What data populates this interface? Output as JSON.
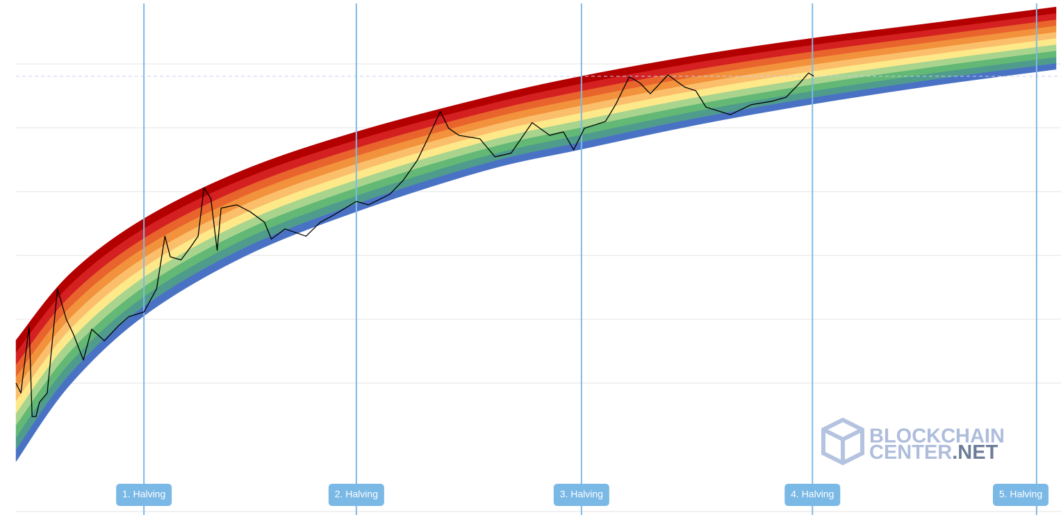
{
  "chart_data": {
    "type": "line",
    "log_scale": true,
    "xlim": [
      0,
      214
    ],
    "ylim": [
      0.01,
      1000000
    ],
    "gridlines": [
      1,
      10,
      100,
      1000,
      10000,
      100000
    ],
    "grid": true,
    "reference_line": 64000,
    "series": [
      {
        "color": "#000000",
        "x": [
          0,
          1,
          2.7,
          3.3,
          4.1,
          4.8,
          6.4,
          8.5,
          10.3,
          11.7,
          13.8,
          15.5,
          18.1,
          20.9,
          23.1,
          26.2,
          28.8,
          30.5,
          31.6,
          33.8,
          35.9,
          37.3,
          38.5,
          39.9,
          41.2,
          42.0,
          45.2,
          48.0,
          50.9,
          52.3,
          55.1,
          59.4,
          62.3,
          65.1,
          69.7,
          72.2,
          76.5,
          79.3,
          82.2,
          84.3,
          86.9,
          88.6,
          90.7,
          95.0,
          98.1,
          101.4,
          105.7,
          109.3,
          112.1,
          114.2,
          116.4,
          120.7,
          122.8,
          125.6,
          127.8,
          129.9,
          133.5,
          137.0,
          139.2,
          141.3,
          146.3,
          150.6,
          154.8,
          157.7,
          160.5,
          162.3,
          163.4
        ],
        "values": [
          1.0,
          0.7,
          7.8,
          0.3,
          0.3,
          0.5,
          0.7,
          30,
          10,
          6,
          2.3,
          7,
          4.6,
          7.8,
          11,
          13,
          30,
          200,
          95,
          85,
          140,
          200,
          1150,
          780,
          120,
          550,
          620,
          480,
          330,
          180,
          260,
          200,
          330,
          430,
          700,
          620,
          900,
          1500,
          3100,
          6700,
          18000,
          9800,
          7600,
          6700,
          3500,
          4000,
          12000,
          7600,
          8600,
          4500,
          9800,
          12500,
          23000,
          63000,
          50000,
          34000,
          67000,
          43000,
          38000,
          21000,
          16000,
          23000,
          26000,
          30000,
          50000,
          72000,
          64000
        ]
      }
    ],
    "bands": {
      "colors": [
        "#4a72c4",
        "#4f9c8c",
        "#62b874",
        "#a8d48e",
        "#fde98a",
        "#fbbf6c",
        "#f2923c",
        "#e8642c",
        "#d42020",
        "#b30000"
      ],
      "x": [
        0,
        11,
        26.2,
        46.6,
        69.7,
        96.4,
        115.8,
        139.2,
        163.1,
        189,
        213
      ],
      "floor": [
        0.059,
        0.93,
        11.3,
        95,
        484,
        2170,
        4600,
        11000,
        23400,
        47000,
        82000
      ],
      "ceiling": [
        4.7,
        51,
        377,
        2170,
        8600,
        30000,
        64000,
        135000,
        252000,
        449000,
        778000
      ]
    },
    "halvings": [
      {
        "label": "1. Halving",
        "x": 26.2
      },
      {
        "label": "2. Halving",
        "x": 69.7
      },
      {
        "label": "3. Halving",
        "x": 115.8
      },
      {
        "label": "4. Halving",
        "x": 163.1
      },
      {
        "label": "5. Halving",
        "x": 209
      }
    ],
    "watermark": [
      "BLOCKCHAIN",
      "CENTER",
      ".NET"
    ]
  }
}
